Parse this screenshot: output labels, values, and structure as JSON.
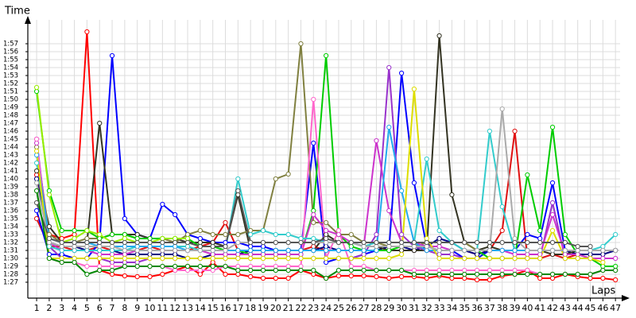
{
  "chart_data": {
    "type": "line",
    "y_label": "Time",
    "x_label": "Laps",
    "xlim": [
      0.3,
      48
    ],
    "ylim": [
      85,
      120
    ],
    "grid": true,
    "x": [
      1,
      2,
      3,
      4,
      5,
      6,
      7,
      8,
      9,
      10,
      11,
      12,
      13,
      14,
      15,
      16,
      17,
      18,
      19,
      20,
      21,
      22,
      23,
      24,
      25,
      26,
      27,
      28,
      29,
      30,
      31,
      32,
      33,
      34,
      35,
      36,
      37,
      38,
      39,
      40,
      41,
      42,
      43,
      44,
      45,
      46,
      47
    ],
    "xticks": [
      1,
      2,
      3,
      4,
      5,
      6,
      7,
      8,
      9,
      10,
      11,
      12,
      13,
      14,
      15,
      16,
      17,
      18,
      19,
      20,
      21,
      22,
      23,
      24,
      25,
      26,
      27,
      28,
      29,
      30,
      31,
      32,
      33,
      34,
      35,
      36,
      37,
      38,
      39,
      40,
      41,
      42,
      43,
      44,
      45,
      46,
      47
    ],
    "yticks": [
      {
        "value": 87,
        "label": "1:27"
      },
      {
        "value": 88,
        "label": "1:28"
      },
      {
        "value": 89,
        "label": "1:29"
      },
      {
        "value": 90,
        "label": "1:30"
      },
      {
        "value": 91,
        "label": "1:31"
      },
      {
        "value": 92,
        "label": "1:32"
      },
      {
        "value": 93,
        "label": "1:33"
      },
      {
        "value": 94,
        "label": "1:34"
      },
      {
        "value": 95,
        "label": "1:35"
      },
      {
        "value": 96,
        "label": "1:36"
      },
      {
        "value": 97,
        "label": "1:37"
      },
      {
        "value": 98,
        "label": "1:38"
      },
      {
        "value": 99,
        "label": "1:39"
      },
      {
        "value": 100,
        "label": "1:40"
      },
      {
        "value": 101,
        "label": "1:41"
      },
      {
        "value": 102,
        "label": "1:42"
      },
      {
        "value": 103,
        "label": "1:43"
      },
      {
        "value": 104,
        "label": "1:44"
      },
      {
        "value": 105,
        "label": "1:45"
      },
      {
        "value": 106,
        "label": "1:46"
      },
      {
        "value": 107,
        "label": "1:47"
      },
      {
        "value": 108,
        "label": "1:48"
      },
      {
        "value": 109,
        "label": "1:49"
      },
      {
        "value": 110,
        "label": "1:50"
      },
      {
        "value": 111,
        "label": "1:51"
      },
      {
        "value": 112,
        "label": "1:52"
      },
      {
        "value": 113,
        "label": "1:53"
      },
      {
        "value": 114,
        "label": "1:54"
      },
      {
        "value": 115,
        "label": "1:55"
      },
      {
        "value": 116,
        "label": "1:56"
      },
      {
        "value": 117,
        "label": "1:57"
      }
    ],
    "series": [
      {
        "color": "#ff0000",
        "values": [
          100.5,
          93,
          92.5,
          93,
          118.5,
          88.5,
          88,
          87.8,
          87.7,
          87.7,
          88,
          88.5,
          89,
          88,
          89.5,
          88,
          88,
          87.7,
          87.5,
          87.5,
          87.5,
          88.5,
          88,
          87.5,
          87.8,
          87.8,
          87.8,
          87.7,
          87.5,
          87.7,
          87.7,
          87.5,
          87.8,
          87.5,
          87.5,
          87.3,
          87.3,
          87.8,
          88,
          88.5,
          87.5,
          87.5,
          88,
          87.7,
          87.5,
          87.5,
          87.3
        ]
      },
      {
        "color": "#e01010",
        "values": [
          95,
          91.5,
          91.5,
          91,
          91,
          91.5,
          91,
          91,
          91,
          91.5,
          91,
          91,
          91,
          91.5,
          92,
          94.5,
          91,
          91,
          91,
          91,
          91,
          91,
          91.5,
          91,
          91,
          91,
          91,
          91,
          91,
          91,
          91,
          91,
          91,
          91,
          91,
          90.5,
          91,
          93.5,
          106,
          90,
          90,
          90.5,
          90,
          90.5,
          null,
          null,
          null
        ]
      },
      {
        "color": "#0000ff",
        "values": [
          96,
          90.5,
          90.5,
          90,
          90,
          92,
          115.5,
          95,
          93,
          92.5,
          96.8,
          95.5,
          93,
          92.5,
          92,
          92,
          92,
          91.5,
          91.5,
          91,
          91,
          91,
          104.5,
          89.5,
          90,
          90,
          90.5,
          91,
          91,
          113.3,
          99.5,
          91.5,
          91,
          91,
          90,
          90,
          91,
          91,
          91,
          93,
          92.5,
          99.5,
          91,
          91,
          91,
          91,
          null
        ]
      },
      {
        "color": "#000080",
        "values": [
          100,
          92,
          91.5,
          91.5,
          91,
          91,
          91,
          90.5,
          90.5,
          90.5,
          90.5,
          90.5,
          90,
          90,
          90.5,
          90.5,
          90.5,
          91,
          91,
          91,
          91,
          91,
          91,
          91.5,
          91,
          91,
          91,
          91,
          91.5,
          91.5,
          91,
          91.5,
          92.5,
          92,
          91,
          90.5,
          91,
          91,
          91,
          91,
          91,
          91,
          91,
          90.5,
          90.5,
          90.5,
          91
        ]
      },
      {
        "color": "#333322",
        "values": [
          101,
          94,
          92,
          92,
          92,
          107,
          93,
          93,
          93,
          92.5,
          92.5,
          92.5,
          92,
          92,
          92,
          91.5,
          98,
          91,
          91,
          91,
          91,
          91,
          91,
          93,
          92,
          92,
          91.5,
          91.5,
          91,
          91,
          91,
          91,
          118,
          98,
          92,
          91,
          91.5,
          91,
          91,
          91,
          91,
          90.5,
          90.5,
          91,
          91,
          91,
          91
        ]
      },
      {
        "color": "#808040",
        "values": [
          104,
          93,
          92,
          92,
          92.5,
          92.5,
          93,
          93,
          92.5,
          92.5,
          92.5,
          92,
          93,
          93.5,
          93,
          93,
          93,
          93.5,
          93.5,
          100,
          100.6,
          117,
          94.5,
          94.5,
          93,
          93,
          92,
          92,
          91.5,
          91.5,
          91.5,
          92,
          92,
          92,
          92,
          91,
          91,
          91,
          91,
          null,
          null,
          null,
          null,
          null,
          null,
          null,
          null
        ]
      },
      {
        "color": "#00cc00",
        "values": [
          111,
          98.5,
          93.5,
          93.5,
          93.5,
          92.5,
          93,
          93,
          92.5,
          92.5,
          92.5,
          92.5,
          92.5,
          91.5,
          91.5,
          91,
          91,
          90.5,
          90.5,
          90.5,
          90.5,
          90.5,
          96,
          115.5,
          93,
          91.5,
          91,
          91,
          91,
          91.5,
          91.5,
          91,
          91,
          91,
          91,
          91,
          90,
          90,
          90,
          100.5,
          93.5,
          106.5,
          93,
          90.5,
          90,
          89,
          89
        ]
      },
      {
        "color": "#99ee00",
        "values": [
          111.5,
          98,
          92,
          92.5,
          93.5,
          93,
          92,
          92.5,
          92,
          92,
          92.5,
          92.5,
          92.5,
          null,
          null,
          null,
          null,
          null,
          null,
          null,
          null,
          null,
          null,
          null,
          null,
          null,
          null,
          null,
          null,
          null,
          null,
          null,
          null,
          null,
          null,
          null,
          null,
          null,
          null,
          null,
          null,
          null,
          null,
          null,
          null,
          null,
          null
        ]
      },
      {
        "color": "#9933cc",
        "values": [
          105,
          91.5,
          90,
          90,
          90,
          90,
          89.5,
          89.5,
          89.5,
          90,
          90,
          90,
          90,
          90,
          90,
          90,
          90,
          90,
          90,
          90,
          90,
          90,
          90,
          90,
          90,
          90,
          90.5,
          93,
          114,
          93,
          91.5,
          91,
          90.5,
          90.5,
          90,
          90,
          90,
          90,
          90,
          90,
          90,
          97,
          90,
          90,
          90,
          null,
          null
        ]
      },
      {
        "color": "#cc33cc",
        "values": [
          104.5,
          92,
          91,
          91,
          91,
          90.5,
          90.5,
          90.5,
          91,
          91,
          91,
          91,
          91,
          91,
          90.5,
          90.5,
          90.5,
          90.5,
          90.5,
          90.5,
          90.5,
          90.5,
          95.5,
          93.5,
          93,
          92,
          91.5,
          104.8,
          96,
          92,
          92,
          91.5,
          91.5,
          91,
          91,
          91,
          91,
          91,
          90.5,
          90.5,
          90.5,
          95.5,
          90.5,
          90.5,
          90,
          90,
          90
        ]
      },
      {
        "color": "#ff66cc",
        "values": [
          105,
          90,
          89.5,
          89.5,
          89,
          89,
          89,
          89,
          89,
          89,
          89,
          88.5,
          88.5,
          88.5,
          88.5,
          89,
          89,
          89,
          89,
          89,
          89,
          89,
          110,
          90,
          93.5,
          89,
          89,
          88.5,
          88.5,
          88.5,
          88.5,
          88.5,
          88.5,
          88.5,
          88.5,
          88.5,
          88.5,
          88.5,
          88.5,
          88.5,
          88,
          88,
          88,
          88,
          88,
          88.5,
          88.5
        ]
      },
      {
        "color": "#33cccc",
        "values": [
          102,
          91.5,
          91,
          91,
          91,
          91,
          91,
          91,
          91.5,
          91.5,
          91.5,
          91.5,
          91.5,
          91,
          91,
          91,
          100,
          93,
          93.5,
          93,
          93,
          92.5,
          92.5,
          92,
          92,
          92,
          91.5,
          92,
          92,
          92,
          92,
          102.5,
          93.5,
          92,
          91,
          91,
          106,
          96.5,
          91,
          91,
          91,
          91,
          91,
          91,
          91,
          91.5,
          93
        ]
      },
      {
        "color": "#22aaee",
        "values": [
          103,
          92.5,
          92,
          92,
          92,
          91.5,
          91.5,
          91.5,
          91.5,
          91.5,
          91.5,
          91.5,
          91,
          91,
          91,
          91,
          91,
          91,
          91,
          91,
          91,
          91,
          91,
          91,
          91,
          91,
          91,
          91,
          106.5,
          98.5,
          92,
          91,
          91,
          91,
          91,
          91,
          91,
          91,
          91,
          91,
          91,
          91,
          91,
          91,
          91,
          null,
          null
        ]
      },
      {
        "color": "#dddd00",
        "values": [
          103.5,
          90,
          90,
          90,
          90,
          90,
          90,
          90,
          90,
          90,
          90,
          90,
          90,
          90,
          90,
          90,
          90,
          90,
          90,
          90,
          90,
          90,
          90,
          90,
          90,
          90,
          90,
          90,
          90,
          90.5,
          111.3,
          92.5,
          90,
          90,
          90,
          90,
          90,
          90,
          90,
          90,
          90,
          93.5,
          90,
          90,
          90,
          89.5,
          null
        ]
      },
      {
        "color": "#aaaaaa",
        "values": [
          99.5,
          92,
          91.5,
          91.5,
          91.5,
          91.5,
          91.5,
          91,
          91,
          91,
          91,
          91,
          91,
          91,
          91,
          91,
          92,
          92,
          92,
          92,
          92,
          92,
          92,
          92,
          92,
          92,
          91.5,
          91.5,
          91.5,
          91.5,
          91.5,
          91.5,
          91,
          91,
          91,
          91,
          91,
          108.8,
          92.5,
          91,
          91,
          91,
          91,
          91,
          91,
          91,
          91
        ]
      },
      {
        "color": "#555555",
        "values": [
          97,
          92.5,
          92,
          92,
          92,
          92,
          92,
          92,
          92,
          92,
          92,
          92,
          92,
          91.5,
          91.5,
          91.5,
          98.5,
          92,
          92,
          92,
          92,
          92,
          92,
          92.5,
          92,
          92,
          92,
          92,
          92,
          92,
          92,
          92,
          92,
          92,
          92,
          92,
          92,
          92,
          92,
          92,
          92,
          92,
          92,
          91.5,
          91.5,
          null,
          null
        ]
      },
      {
        "color": "#008800",
        "values": [
          98.5,
          90,
          89.5,
          89.5,
          88,
          88.5,
          88.5,
          89,
          89,
          89,
          89,
          89,
          89,
          89,
          89,
          89,
          88.5,
          88.5,
          88.5,
          88.5,
          88.5,
          88.5,
          88.5,
          87.5,
          88.5,
          88.5,
          88.5,
          88.5,
          88.5,
          88.5,
          88,
          88,
          88,
          88,
          88,
          88,
          88,
          88,
          88,
          88,
          88,
          88,
          88,
          88,
          88,
          88.5,
          88.5
        ]
      }
    ]
  }
}
